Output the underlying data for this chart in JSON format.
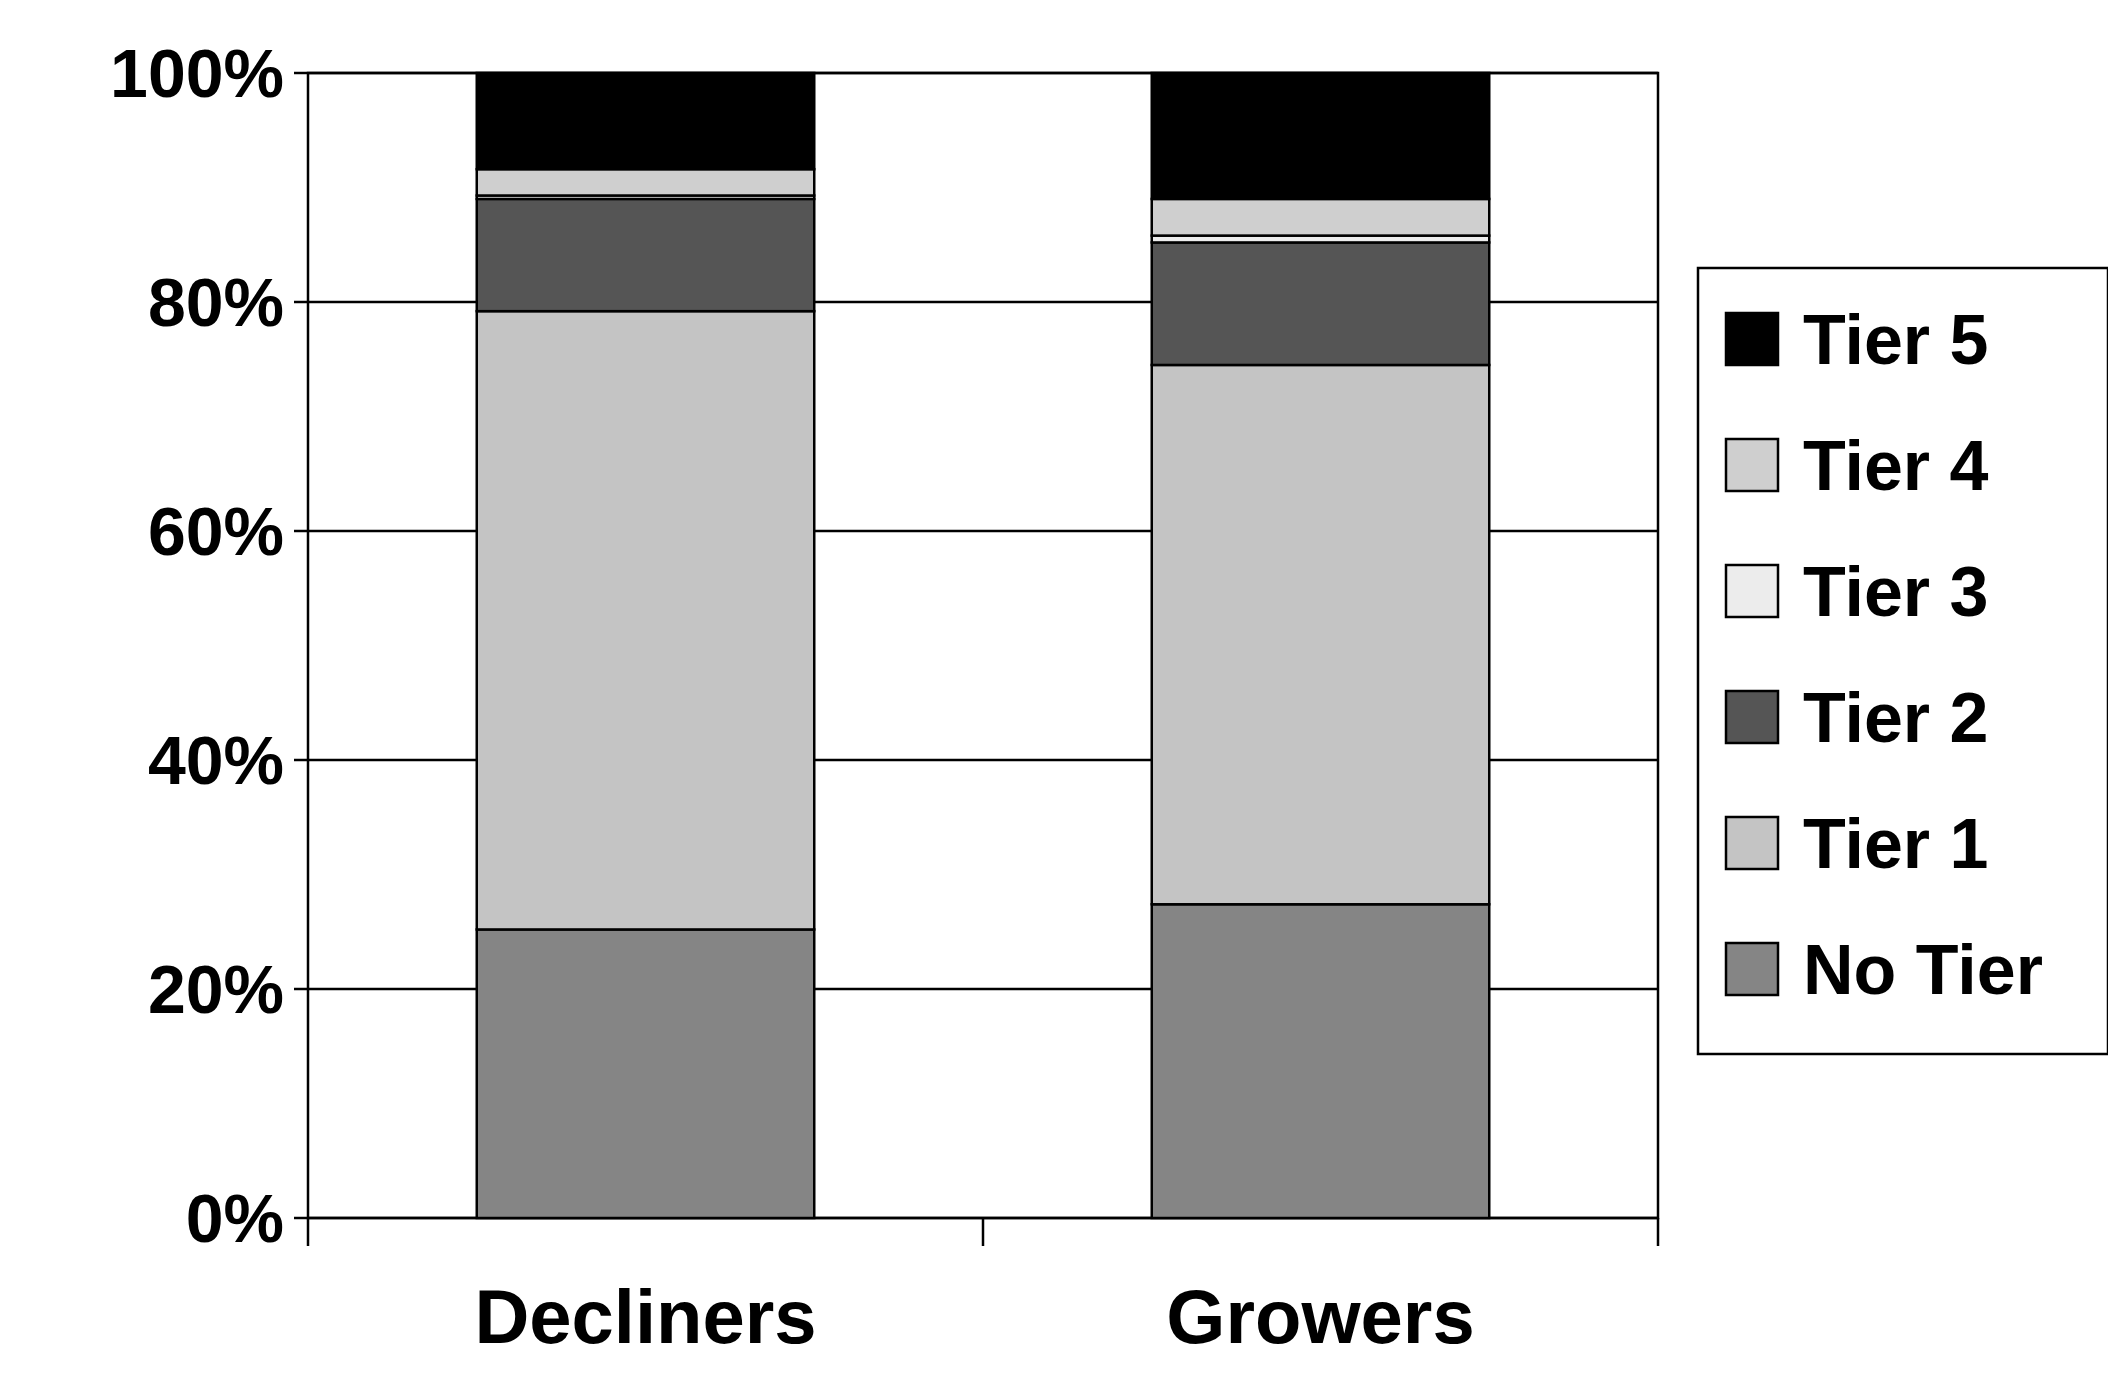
{
  "chart_data": {
    "type": "bar",
    "stacked": true,
    "categories": [
      "Decliners",
      "Growers"
    ],
    "series": [
      {
        "name": "No Tier",
        "color": "#858585",
        "values": [
          25.2,
          27.4
        ]
      },
      {
        "name": "Tier 1",
        "color": "#c4c4c4",
        "values": [
          54.0,
          47.1
        ]
      },
      {
        "name": "Tier 2",
        "color": "#555555",
        "values": [
          9.8,
          10.7
        ]
      },
      {
        "name": "Tier 3",
        "color": "#ececec",
        "values": [
          0.3,
          0.6
        ]
      },
      {
        "name": "Tier 4",
        "color": "#cfcfcf",
        "values": [
          2.3,
          3.2
        ]
      },
      {
        "name": "Tier 5",
        "color": "#000000",
        "values": [
          8.4,
          11.0
        ]
      }
    ],
    "ylim": [
      0,
      100
    ],
    "yticks": [
      {
        "value": 0,
        "label": "0%"
      },
      {
        "value": 20,
        "label": "20%"
      },
      {
        "value": 40,
        "label": "40%"
      },
      {
        "value": 60,
        "label": "60%"
      },
      {
        "value": 80,
        "label": "80%"
      },
      {
        "value": 100,
        "label": "100%"
      }
    ],
    "grid": "y",
    "legend": "right"
  }
}
